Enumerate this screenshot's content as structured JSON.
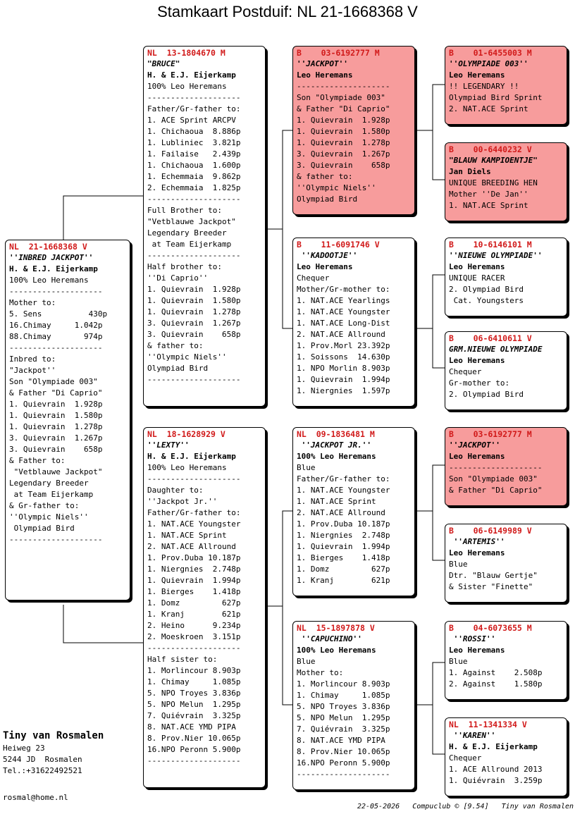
{
  "title": "Stamkaart Postduif: NL  21-1668368 V",
  "cards": {
    "subject": [
      "NL  21-1668368 V",
      "''INBRED JACKPOT''",
      "H. & E.J. Eijerkamp",
      "100% Leo Heremans",
      "--------------------",
      "Mother to:",
      "5. Sens          430p",
      "16.Chimay     1.042p",
      "88.Chimay       974p",
      "--------------------",
      "Inbred to:",
      "\"Jackpot''",
      "Son \"Olympiade 003\"",
      "& Father \"Di Caprio\"",
      "1. Quievrain  1.928p",
      "1. Quievrain  1.580p",
      "1. Quievrain  1.278p",
      "3. Quievrain  1.267p",
      "3. Quievrain    658p",
      "& Father to:",
      " \"Vetblauwe Jackpot\"",
      "Legendary Breeder",
      " at Team Eijerkamp",
      "& Gr-father to:",
      "''Olympic Niels''",
      " Olympiad Bird",
      "--------------------"
    ],
    "father": [
      "NL  13-1804670 M",
      "\"BRUCE\"",
      "H. & E.J. Eijerkamp",
      "100% Leo Heremans",
      "--------------------",
      "Father/Gr-father to:",
      "1. ACE Sprint ARCPV",
      "1. Chichaoua  8.886p",
      "1. Lubliniec  3.821p",
      "1. Failaise   2.439p",
      "1. Chichaoua  1.600p",
      "1. Echemmaia  9.862p",
      "2. Echemmaia  1.825p",
      "--------------------",
      "Full Brother to:",
      "\"Vetblauwe Jackpot\"",
      "Legendary Breeder",
      " at Team Eijerkamp",
      "--------------------",
      "Half brother to:",
      "''Di Caprio''",
      "1. Quievrain  1.928p",
      "1. Quievrain  1.580p",
      "1. Quievrain  1.278p",
      "3. Quievrain  1.267p",
      "3. Quievrain    658p",
      "& father to:",
      "''Olympic Niels''",
      "Olympiad Bird",
      "--------------------"
    ],
    "mother": [
      "NL  18-1628929 V",
      "''LEXTY''",
      "H. & E.J. Eijerkamp",
      "100% Leo Heremans",
      "--------------------",
      "Daughter to:",
      "''Jackpot Jr.''",
      "Father/Gr-father to:",
      "1. NAT.ACE Youngster",
      "1. NAT.ACE Sprint",
      "2. NAT.ACE Allround",
      "1. Prov.Duba 10.187p",
      "1. Niergnies  2.748p",
      "1. Quievrain  1.994p",
      "1. Bierges    1.418p",
      "1. Domz         627p",
      "1. Kranj        621p",
      "2. Heino      9.234p",
      "2. Moeskroen  3.151p",
      "--------------------",
      "Half sister to:",
      "1. Morlincour 8.903p",
      "1. Chimay     1.085p",
      "5. NPO Troyes 3.836p",
      "5. NPO Melun  1.295p",
      "7. Quiévrain  3.325p",
      "8. NAT.ACE YMD PIPA",
      "8. Prov.Nier 10.065p",
      "16.NPO Peronn 5.900p",
      "--------------------"
    ],
    "ff": [
      "B    03-6192777 M",
      "''JACKPOT''",
      "Leo Heremans",
      "--------------------",
      "Son \"Olympiade 003\"",
      "& Father \"Di Caprio\"",
      "1. Quievrain  1.928p",
      "1. Quievrain  1.580p",
      "1. Quievrain  1.278p",
      "3. Quievrain  1.267p",
      "3. Quievrain    658p",
      "& father to:",
      "''Olympic Niels''",
      "Olympiad Bird"
    ],
    "fm": [
      "B    11-6091746 V",
      " ''KADOOTJE''",
      "Leo Heremans",
      "Chequer",
      "Mother/Gr-mother to:",
      "1. NAT.ACE Yearlings",
      "1. NAT.ACE Youngster",
      "1. NAT.ACE Long-Dist",
      "2. NAT.ACE Allround",
      "1. Prov.Morl 23.392p",
      "1. Soissons  14.630p",
      "1. NPO Morlin 8.903p",
      "1. Quievrain  1.994p",
      "1. Niergnies  1.597p"
    ],
    "mf": [
      "NL  09-1836481 M",
      " ''JACKPOT JR.''",
      "100% Leo Heremans",
      "Blue",
      "Father/Gr-father to:",
      "1. NAT.ACE Youngster",
      "1. NAT.ACE Sprint",
      "2. NAT.ACE Allround",
      "1. Prov.Duba 10.187p",
      "1. Niergnies  2.748p",
      "1. Quievrain  1.994p",
      "1. Bierges    1.418p",
      "1. Domz         627p",
      "1. Kranj        621p"
    ],
    "mm": [
      "NL  15-1897878 V",
      " ''CAPUCHINO''",
      "100% Leo Heremans",
      "Blue",
      "Mother to:",
      "1. Morlincour 8.903p",
      "1. Chimay     1.085p",
      "5. NPO Troyes 3.836p",
      "5. NPO Melun  1.295p",
      "7. Quiévrain  3.325p",
      "8. NAT.ACE YMD PIPA",
      "8. Prov.Nier 10.065p",
      "16.NPO Peronn 5.900p",
      "--------------------"
    ],
    "fff": [
      "B    01-6455003 M",
      "''OLYMPIADE 003''",
      "Leo Heremans",
      "!! LEGENDARY !!",
      "Olympiad Bird Sprint",
      "2. NAT.ACE Sprint"
    ],
    "ffm": [
      "B    00-6440232 V",
      "\"BLAUW KAMPIOENTJE\"",
      "Jan Diels",
      "UNIQUE BREEDING HEN",
      "Mother ''De Jan''",
      "1. NAT.ACE Sprint"
    ],
    "fmf": [
      "B    10-6146101 M",
      "''NIEUWE OLYMPIADE''",
      "Leo Heremans",
      "UNIQUE RACER",
      "2. Olympiad Bird",
      " Cat. Youngsters"
    ],
    "fmm": [
      "B    06-6410611 V",
      "GRM.NIEUWE OLYMPIADE",
      "Leo Heremans",
      "Chequer",
      "Gr-mother to:",
      "2. Olympiad Bird"
    ],
    "mff": [
      "B    03-6192777 M",
      "''JACKPOT''",
      "Leo Heremans",
      "--------------------",
      "Son \"Olympiade 003\"",
      "& Father \"Di Caprio\""
    ],
    "mfm": [
      "B    06-6149989 V",
      " ''ARTEMIS''",
      "Leo Heremans",
      "Blue",
      "Dtr. \"Blauw Gertje\"",
      "& Sister \"Finette\""
    ],
    "mmf": [
      "B    04-6073655 M",
      " ''ROSSI''",
      "Leo Heremans",
      "Blue",
      "1. Against    2.508p",
      "2. Against    1.580p"
    ],
    "mmm": [
      "NL  11-1341334 V",
      " ''KAREN''",
      "H. & E.J. Eijerkamp",
      "Chequer",
      "1. ACE Allround 2013",
      "1. Quiévrain  3.259p"
    ]
  },
  "owner": {
    "name": "Tiny van Rosmalen",
    "address1": "Heiweg 23",
    "address2": "5244 JD  Rosmalen",
    "phone": "Tel.:+31622492521",
    "email": "rosmal@home.nl"
  },
  "footer": "22-05-2026   Compuclub © [9.54]   Tiny van Rosmalen",
  "colors": {
    "ring": "#d11a1a",
    "highlight": "#f79c9c"
  }
}
